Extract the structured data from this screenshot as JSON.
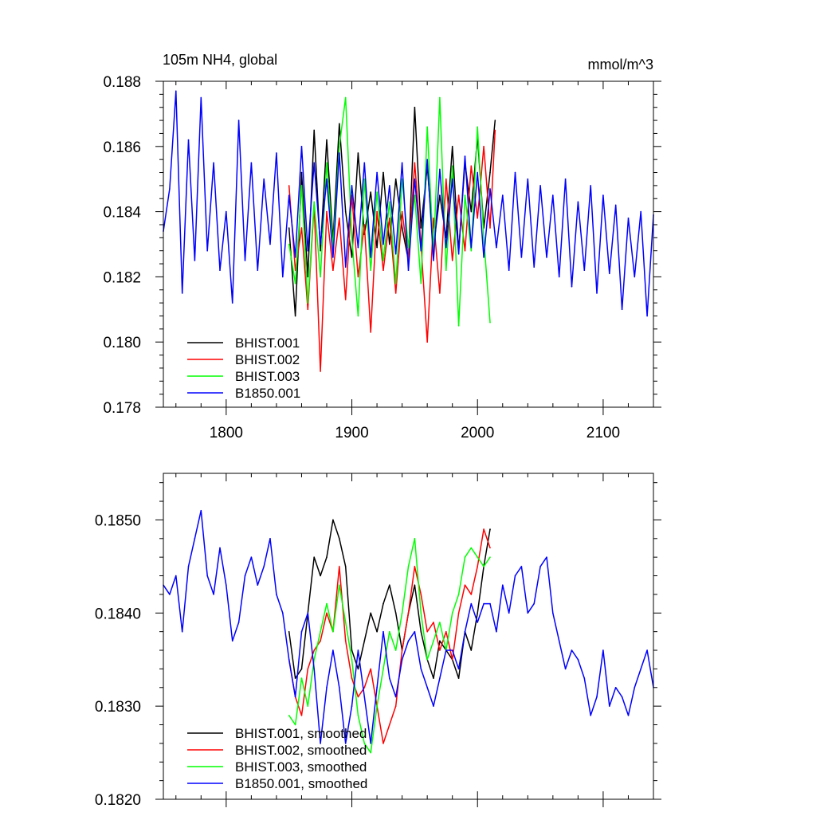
{
  "chart_data": [
    {
      "type": "line",
      "title": "105m NH4, global",
      "units": "mmol/m^3",
      "xlabel": "",
      "ylabel": "",
      "xlim": [
        1750,
        2140
      ],
      "ylim": [
        0.178,
        0.188
      ],
      "x_ticks": [
        1800,
        1900,
        2000,
        2100
      ],
      "x_tick_labels": [
        "1800",
        "1900",
        "2000",
        "2100"
      ],
      "y_ticks": [
        0.178,
        0.18,
        0.182,
        0.184,
        0.186,
        0.188
      ],
      "y_tick_labels": [
        "0.178",
        "0.180",
        "0.182",
        "0.184",
        "0.186",
        "0.188"
      ],
      "legend_position": "bottom-left",
      "grid": false,
      "series": [
        {
          "name": "BHIST.001",
          "color": "#000000",
          "x": [
            1850,
            1855,
            1860,
            1865,
            1870,
            1875,
            1880,
            1885,
            1890,
            1895,
            1900,
            1905,
            1910,
            1915,
            1920,
            1925,
            1930,
            1935,
            1940,
            1945,
            1950,
            1955,
            1960,
            1965,
            1970,
            1975,
            1980,
            1985,
            1990,
            1995,
            2000,
            2005,
            2010,
            2014
          ],
          "y": [
            0.1835,
            0.1808,
            0.1852,
            0.182,
            0.1865,
            0.1828,
            0.1862,
            0.1831,
            0.1867,
            0.184,
            0.1826,
            0.1858,
            0.1833,
            0.1846,
            0.1829,
            0.1852,
            0.183,
            0.185,
            0.1835,
            0.1825,
            0.1872,
            0.1835,
            0.1854,
            0.1829,
            0.1845,
            0.1832,
            0.186,
            0.1828,
            0.1855,
            0.184,
            0.1863,
            0.1835,
            0.1852,
            0.1868
          ]
        },
        {
          "name": "BHIST.002",
          "color": "#ff0000",
          "x": [
            1850,
            1855,
            1860,
            1865,
            1870,
            1875,
            1880,
            1885,
            1890,
            1895,
            1900,
            1905,
            1910,
            1915,
            1920,
            1925,
            1930,
            1935,
            1940,
            1945,
            1950,
            1955,
            1960,
            1965,
            1970,
            1975,
            1980,
            1985,
            1990,
            1995,
            2000,
            2005,
            2010,
            2014
          ],
          "y": [
            0.1848,
            0.1822,
            0.1835,
            0.181,
            0.1842,
            0.1791,
            0.184,
            0.1822,
            0.1838,
            0.1813,
            0.1845,
            0.182,
            0.1836,
            0.1803,
            0.184,
            0.1822,
            0.1838,
            0.1815,
            0.184,
            0.1825,
            0.1855,
            0.183,
            0.18,
            0.1838,
            0.1815,
            0.185,
            0.1825,
            0.1845,
            0.1828,
            0.1854,
            0.1838,
            0.186,
            0.1835,
            0.1865
          ]
        },
        {
          "name": "BHIST.003",
          "color": "#00ff00",
          "x": [
            1850,
            1855,
            1860,
            1865,
            1870,
            1875,
            1880,
            1885,
            1890,
            1895,
            1900,
            1905,
            1910,
            1915,
            1920,
            1925,
            1930,
            1935,
            1940,
            1945,
            1950,
            1955,
            1960,
            1965,
            1970,
            1975,
            1980,
            1985,
            1990,
            1995,
            2000,
            2005,
            2010
          ],
          "y": [
            0.183,
            0.1818,
            0.1848,
            0.1812,
            0.1843,
            0.182,
            0.1855,
            0.1829,
            0.186,
            0.1875,
            0.1832,
            0.1808,
            0.185,
            0.1822,
            0.1846,
            0.1825,
            0.1843,
            0.1818,
            0.185,
            0.1829,
            0.1845,
            0.1818,
            0.1866,
            0.1827,
            0.1875,
            0.1822,
            0.1854,
            0.1805,
            0.1845,
            0.1828,
            0.1866,
            0.1832,
            0.1806
          ]
        },
        {
          "name": "B1850.001",
          "color": "#0000ff",
          "x": [
            1750,
            1755,
            1760,
            1765,
            1770,
            1775,
            1780,
            1785,
            1790,
            1795,
            1800,
            1805,
            1810,
            1815,
            1820,
            1825,
            1830,
            1835,
            1840,
            1845,
            1850,
            1855,
            1860,
            1865,
            1870,
            1875,
            1880,
            1885,
            1890,
            1895,
            1900,
            1905,
            1910,
            1915,
            1920,
            1925,
            1930,
            1935,
            1940,
            1945,
            1950,
            1955,
            1960,
            1965,
            1970,
            1975,
            1980,
            1985,
            1990,
            1995,
            2000,
            2005,
            2010,
            2015,
            2020,
            2025,
            2030,
            2035,
            2040,
            2045,
            2050,
            2055,
            2060,
            2065,
            2070,
            2075,
            2080,
            2085,
            2090,
            2095,
            2100,
            2105,
            2110,
            2115,
            2120,
            2125,
            2130,
            2135,
            2140
          ],
          "y": [
            0.1834,
            0.1847,
            0.1877,
            0.1815,
            0.1862,
            0.1825,
            0.1875,
            0.1828,
            0.1855,
            0.1822,
            0.184,
            0.1812,
            0.1868,
            0.1825,
            0.1855,
            0.1822,
            0.185,
            0.183,
            0.1858,
            0.182,
            0.1845,
            0.1826,
            0.186,
            0.1828,
            0.1855,
            0.183,
            0.185,
            0.1826,
            0.1858,
            0.1823,
            0.1848,
            0.1829,
            0.1855,
            0.1826,
            0.1852,
            0.183,
            0.1848,
            0.1827,
            0.1855,
            0.1822,
            0.185,
            0.1828,
            0.1856,
            0.1825,
            0.1853,
            0.1829,
            0.185,
            0.1827,
            0.1857,
            0.1829,
            0.1852,
            0.1826,
            0.1847,
            0.1829,
            0.1845,
            0.1822,
            0.1852,
            0.1826,
            0.185,
            0.1823,
            0.1848,
            0.1826,
            0.1845,
            0.182,
            0.185,
            0.1817,
            0.1843,
            0.1822,
            0.1848,
            0.1815,
            0.1845,
            0.1821,
            0.1842,
            0.181,
            0.1838,
            0.182,
            0.184,
            0.1808,
            0.1839
          ]
        }
      ]
    },
    {
      "type": "line",
      "title": "",
      "xlabel": "",
      "ylabel": "",
      "xlim": [
        1750,
        2140
      ],
      "ylim": [
        0.182,
        0.1855
      ],
      "x_ticks": [
        1800,
        1900,
        2000,
        2100
      ],
      "x_tick_labels": [],
      "y_ticks": [
        0.182,
        0.183,
        0.184,
        0.185
      ],
      "y_tick_labels": [
        "0.1820",
        "0.1830",
        "0.1840",
        "0.1850"
      ],
      "legend_position": "bottom-left",
      "grid": false,
      "series": [
        {
          "name": "BHIST.001, smoothed",
          "color": "#000000",
          "x": [
            1850,
            1855,
            1860,
            1865,
            1870,
            1875,
            1880,
            1885,
            1890,
            1895,
            1900,
            1905,
            1910,
            1915,
            1920,
            1925,
            1930,
            1935,
            1940,
            1945,
            1950,
            1955,
            1960,
            1965,
            1970,
            1975,
            1980,
            1985,
            1990,
            1995,
            2000,
            2005,
            2010
          ],
          "y": [
            0.1838,
            0.1833,
            0.1834,
            0.184,
            0.1846,
            0.1844,
            0.1846,
            0.185,
            0.1848,
            0.1845,
            0.1836,
            0.1834,
            0.1837,
            0.184,
            0.1838,
            0.1841,
            0.1843,
            0.184,
            0.1836,
            0.184,
            0.1843,
            0.1838,
            0.1835,
            0.1833,
            0.1837,
            0.1836,
            0.1835,
            0.1833,
            0.1838,
            0.1836,
            0.184,
            0.1845,
            0.1849
          ]
        },
        {
          "name": "BHIST.002, smoothed",
          "color": "#ff0000",
          "x": [
            1850,
            1855,
            1860,
            1865,
            1870,
            1875,
            1880,
            1885,
            1890,
            1895,
            1900,
            1905,
            1910,
            1915,
            1920,
            1925,
            1930,
            1935,
            1940,
            1945,
            1950,
            1955,
            1960,
            1965,
            1970,
            1975,
            1980,
            1985,
            1990,
            1995,
            2000,
            2005,
            2010
          ],
          "y": [
            0.1835,
            0.1831,
            0.1829,
            0.1834,
            0.1836,
            0.1837,
            0.184,
            0.1838,
            0.1845,
            0.1837,
            0.1833,
            0.1831,
            0.1832,
            0.1834,
            0.183,
            0.1826,
            0.1828,
            0.183,
            0.1836,
            0.184,
            0.1845,
            0.1842,
            0.1838,
            0.1839,
            0.1836,
            0.1838,
            0.1835,
            0.184,
            0.1843,
            0.1842,
            0.1845,
            0.1849,
            0.1847
          ]
        },
        {
          "name": "BHIST.003, smoothed",
          "color": "#00ff00",
          "x": [
            1850,
            1855,
            1860,
            1865,
            1870,
            1875,
            1880,
            1885,
            1890,
            1895,
            1900,
            1905,
            1910,
            1915,
            1920,
            1925,
            1930,
            1935,
            1940,
            1945,
            1950,
            1955,
            1960,
            1965,
            1970,
            1975,
            1980,
            1985,
            1990,
            1995,
            2000,
            2005,
            2010
          ],
          "y": [
            0.1829,
            0.1828,
            0.1833,
            0.183,
            0.1835,
            0.1838,
            0.1841,
            0.1838,
            0.1843,
            0.1839,
            0.1835,
            0.1829,
            0.1826,
            0.1825,
            0.183,
            0.1834,
            0.1838,
            0.1836,
            0.184,
            0.1845,
            0.1848,
            0.184,
            0.1835,
            0.1837,
            0.1839,
            0.1836,
            0.184,
            0.1842,
            0.1846,
            0.1847,
            0.1846,
            0.1845,
            0.1846
          ]
        },
        {
          "name": "B1850.001, smoothed",
          "color": "#0000ff",
          "x": [
            1750,
            1755,
            1760,
            1765,
            1770,
            1775,
            1780,
            1785,
            1790,
            1795,
            1800,
            1805,
            1810,
            1815,
            1820,
            1825,
            1830,
            1835,
            1840,
            1845,
            1850,
            1855,
            1860,
            1865,
            1870,
            1875,
            1880,
            1885,
            1890,
            1895,
            1900,
            1905,
            1910,
            1915,
            1920,
            1925,
            1930,
            1935,
            1940,
            1945,
            1950,
            1955,
            1960,
            1965,
            1970,
            1975,
            1980,
            1985,
            1990,
            1995,
            2000,
            2005,
            2010,
            2015,
            2020,
            2025,
            2030,
            2035,
            2040,
            2045,
            2050,
            2055,
            2060,
            2065,
            2070,
            2075,
            2080,
            2085,
            2090,
            2095,
            2100,
            2105,
            2110,
            2115,
            2120,
            2125,
            2130,
            2135,
            2140
          ],
          "y": [
            0.1843,
            0.1842,
            0.1844,
            0.1838,
            0.1845,
            0.1848,
            0.1851,
            0.1844,
            0.1842,
            0.1847,
            0.1843,
            0.1837,
            0.1839,
            0.1844,
            0.1846,
            0.1843,
            0.1845,
            0.1848,
            0.1842,
            0.184,
            0.1835,
            0.1831,
            0.1838,
            0.184,
            0.1834,
            0.1826,
            0.1832,
            0.1836,
            0.1832,
            0.1826,
            0.183,
            0.1836,
            0.1831,
            0.1826,
            0.1832,
            0.1838,
            0.1833,
            0.1831,
            0.1835,
            0.1837,
            0.1838,
            0.1834,
            0.1832,
            0.183,
            0.1833,
            0.1836,
            0.1836,
            0.1834,
            0.1838,
            0.1841,
            0.1839,
            0.1841,
            0.1841,
            0.1838,
            0.1843,
            0.184,
            0.1844,
            0.1845,
            0.184,
            0.1841,
            0.1845,
            0.1846,
            0.184,
            0.1837,
            0.1834,
            0.1836,
            0.1835,
            0.1833,
            0.1829,
            0.1831,
            0.1836,
            0.183,
            0.1832,
            0.1831,
            0.1829,
            0.1832,
            0.1834,
            0.1836,
            0.1832
          ]
        }
      ]
    }
  ]
}
